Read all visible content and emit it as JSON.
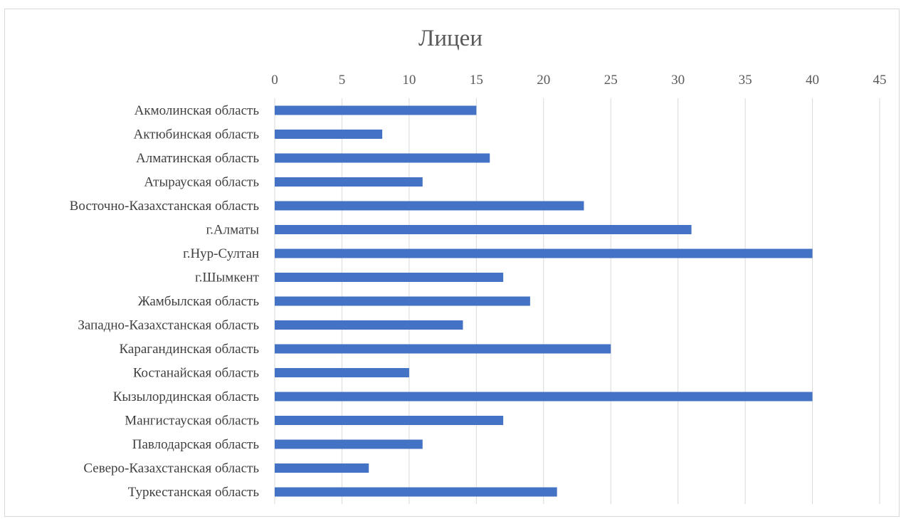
{
  "chart_data": {
    "type": "bar",
    "orientation": "horizontal",
    "title": "Лицеи",
    "xlabel": "",
    "ylabel": "",
    "xlim": [
      0,
      45
    ],
    "ticks": [
      0,
      5,
      10,
      15,
      20,
      25,
      30,
      35,
      40,
      45
    ],
    "axis_position": "top",
    "grid": true,
    "legend": "none",
    "bar_color": "#4472c4",
    "categories": [
      "Акмолинская область",
      "Актюбинская область",
      "Алматинская область",
      "Атырауская область",
      "Восточно-Казахстанская область",
      "г.Алматы",
      "г.Нур-Султан",
      "г.Шымкент",
      "Жамбылская область",
      "Западно-Казахстанская область",
      "Карагандинская область",
      "Костанайская область",
      "Кызылординская область",
      "Мангистауская область",
      "Павлодарская область",
      "Северо-Казахстанская область",
      "Туркестанская область"
    ],
    "values": [
      15,
      8,
      16,
      11,
      23,
      31,
      40,
      17,
      19,
      14,
      25,
      10,
      40,
      17,
      11,
      7,
      21
    ]
  }
}
